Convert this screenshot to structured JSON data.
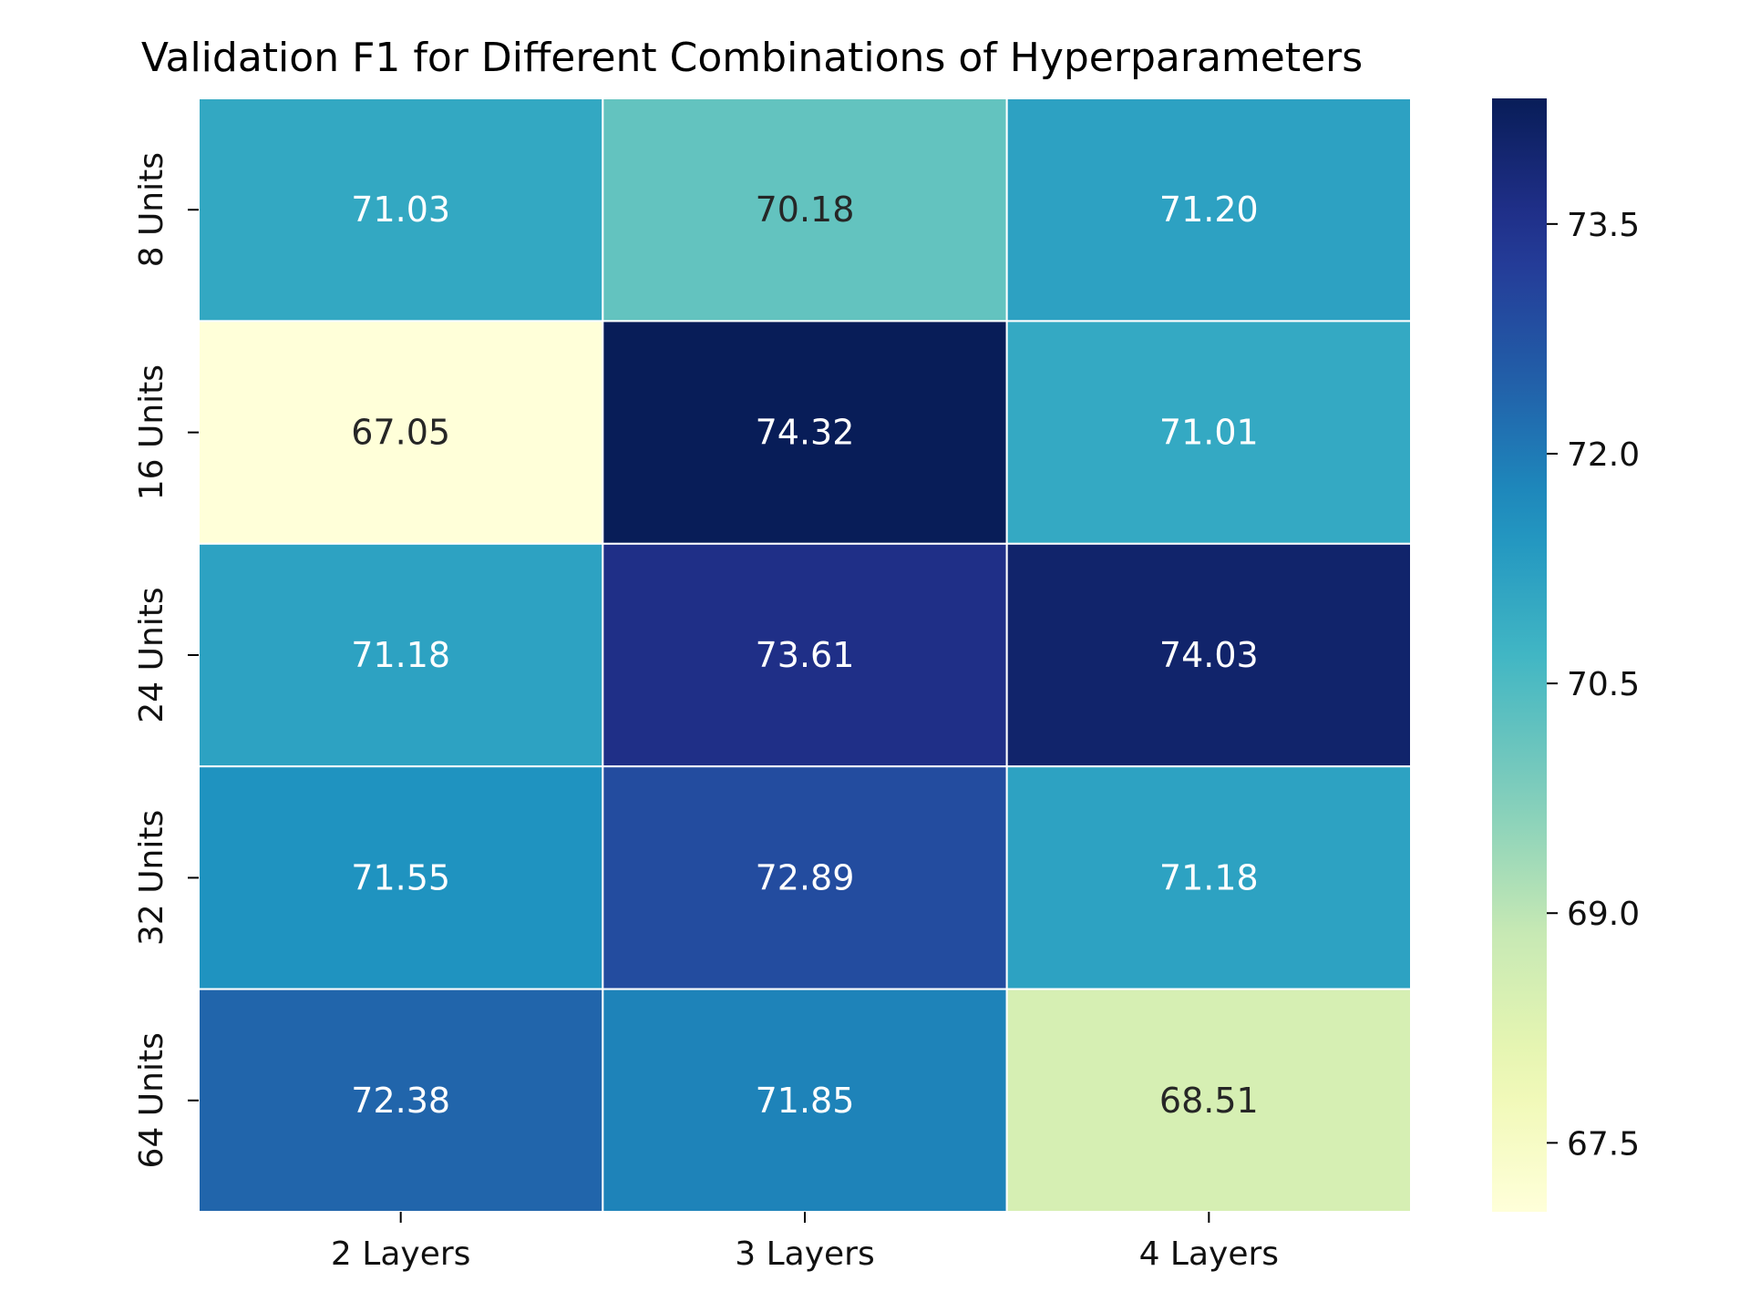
{
  "chart_data": {
    "type": "heatmap",
    "title": "Validation F1 for Different Combinations of Hyperparameters",
    "xlabel": "",
    "ylabel": "",
    "x_categories": [
      "2 Layers",
      "3 Layers",
      "4 Layers"
    ],
    "y_categories": [
      "8 Units",
      "16 Units",
      "24 Units",
      "32 Units",
      "64 Units"
    ],
    "values": [
      [
        71.03,
        70.18,
        71.2
      ],
      [
        67.05,
        74.32,
        71.01
      ],
      [
        71.18,
        73.61,
        74.03
      ],
      [
        71.55,
        72.89,
        71.18
      ],
      [
        72.38,
        71.85,
        68.51
      ]
    ],
    "value_labels": [
      [
        "71.03",
        "70.18",
        "71.20"
      ],
      [
        "67.05",
        "74.32",
        "71.01"
      ],
      [
        "71.18",
        "73.61",
        "74.03"
      ],
      [
        "71.55",
        "72.89",
        "71.18"
      ],
      [
        "72.38",
        "71.85",
        "68.51"
      ]
    ],
    "colormap": "YlGnBu",
    "colorbar": {
      "range": [
        67.05,
        74.32
      ],
      "ticks": [
        67.5,
        69.0,
        70.5,
        72.0,
        73.5
      ],
      "tick_labels": [
        "67.5",
        "69.0",
        "70.5",
        "72.0",
        "73.5"
      ],
      "position": "right"
    },
    "grid": true,
    "cell_border_color": "#ffffff"
  }
}
